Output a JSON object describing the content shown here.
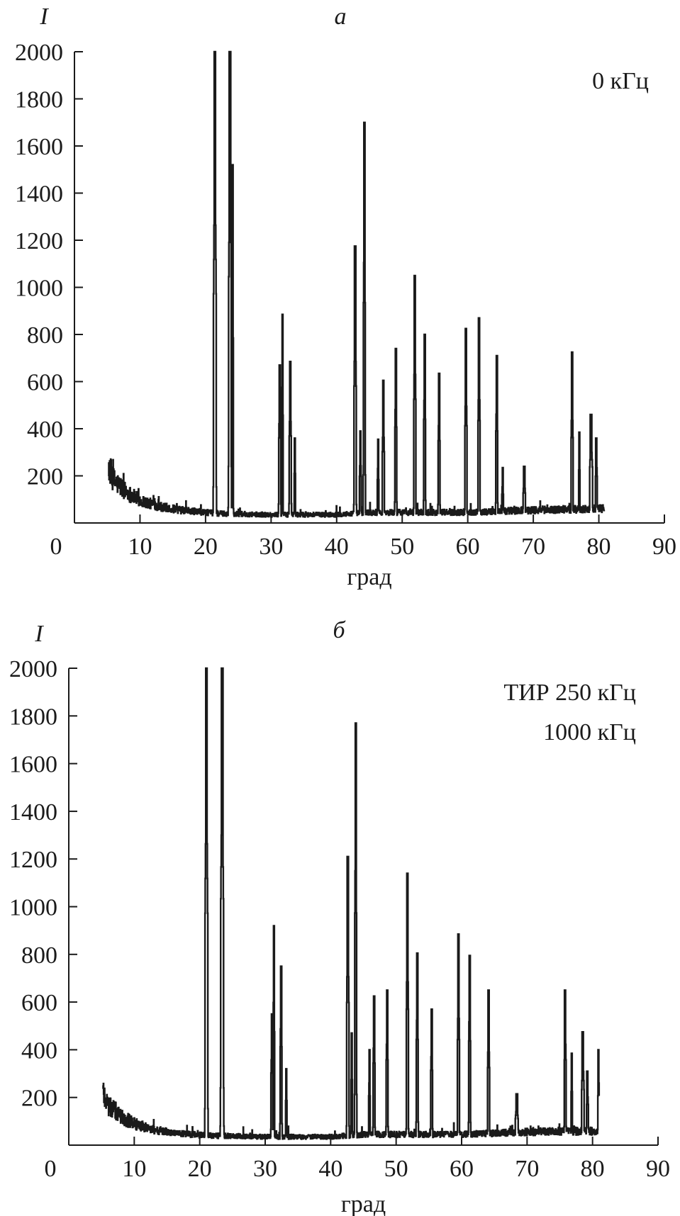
{
  "chart_data": [
    {
      "type": "line",
      "panel_label": "а",
      "ylabel": "I",
      "xlabel": "град",
      "annotation": [
        "0 кГц"
      ],
      "xlim": [
        0,
        90
      ],
      "ylim": [
        0,
        2000
      ],
      "x_ticks": [
        0,
        10,
        20,
        30,
        40,
        50,
        60,
        70,
        80,
        90
      ],
      "y_ticks": [
        200,
        400,
        600,
        800,
        1000,
        1200,
        1400,
        1600,
        1800,
        2000
      ],
      "x_start": 5.2,
      "x_end": 80.8,
      "baseline": [
        [
          5.2,
          240
        ],
        [
          6,
          180
        ],
        [
          8,
          130
        ],
        [
          10,
          95
        ],
        [
          13,
          70
        ],
        [
          16,
          55
        ],
        [
          20,
          45
        ],
        [
          22,
          40
        ],
        [
          30,
          35
        ],
        [
          40,
          35
        ],
        [
          45,
          45
        ],
        [
          60,
          45
        ],
        [
          70,
          55
        ],
        [
          80,
          60
        ]
      ],
      "peaks": [
        {
          "x": 21.4,
          "y": 2000,
          "w": 0.55
        },
        {
          "x": 23.7,
          "y": 2000,
          "w": 0.55
        },
        {
          "x": 24.1,
          "y": 1520,
          "w": 0.3
        },
        {
          "x": 31.3,
          "y": 670,
          "w": 0.45
        },
        {
          "x": 31.7,
          "y": 885,
          "w": 0.3
        },
        {
          "x": 32.9,
          "y": 685,
          "w": 0.45
        },
        {
          "x": 33.6,
          "y": 360,
          "w": 0.3
        },
        {
          "x": 42.8,
          "y": 1175,
          "w": 0.45
        },
        {
          "x": 43.6,
          "y": 390,
          "w": 0.35
        },
        {
          "x": 44.2,
          "y": 1700,
          "w": 0.4
        },
        {
          "x": 46.3,
          "y": 355,
          "w": 0.3
        },
        {
          "x": 47.1,
          "y": 605,
          "w": 0.4
        },
        {
          "x": 49.0,
          "y": 740,
          "w": 0.4
        },
        {
          "x": 51.9,
          "y": 1050,
          "w": 0.4
        },
        {
          "x": 53.4,
          "y": 800,
          "w": 0.4
        },
        {
          "x": 55.6,
          "y": 635,
          "w": 0.4
        },
        {
          "x": 59.7,
          "y": 825,
          "w": 0.4
        },
        {
          "x": 61.7,
          "y": 870,
          "w": 0.4
        },
        {
          "x": 64.4,
          "y": 710,
          "w": 0.4
        },
        {
          "x": 65.3,
          "y": 235,
          "w": 0.3
        },
        {
          "x": 68.6,
          "y": 240,
          "w": 0.5
        },
        {
          "x": 75.9,
          "y": 725,
          "w": 0.4
        },
        {
          "x": 77.0,
          "y": 385,
          "w": 0.3
        },
        {
          "x": 78.8,
          "y": 460,
          "w": 0.6
        },
        {
          "x": 79.6,
          "y": 360,
          "w": 0.4
        }
      ]
    },
    {
      "type": "line",
      "panel_label": "б",
      "ylabel": "I",
      "xlabel": "град",
      "annotation": [
        "ТИР 250 кГц",
        "1000 кГц"
      ],
      "xlim": [
        0,
        90
      ],
      "ylim": [
        0,
        2000
      ],
      "x_ticks": [
        0,
        10,
        20,
        30,
        40,
        50,
        60,
        70,
        80,
        90
      ],
      "y_ticks": [
        200,
        400,
        600,
        800,
        1000,
        1200,
        1400,
        1600,
        1800,
        2000
      ],
      "x_start": 5.2,
      "x_end": 81.0,
      "baseline": [
        [
          5.2,
          230
        ],
        [
          6,
          170
        ],
        [
          8,
          120
        ],
        [
          10,
          90
        ],
        [
          13,
          65
        ],
        [
          16,
          50
        ],
        [
          20,
          42
        ],
        [
          22,
          40
        ],
        [
          30,
          35
        ],
        [
          40,
          35
        ],
        [
          45,
          45
        ],
        [
          60,
          45
        ],
        [
          70,
          55
        ],
        [
          81,
          60
        ]
      ],
      "peaks": [
        {
          "x": 21.0,
          "y": 2000,
          "w": 0.55
        },
        {
          "x": 23.4,
          "y": 2000,
          "w": 0.6
        },
        {
          "x": 31.0,
          "y": 550,
          "w": 0.4
        },
        {
          "x": 31.3,
          "y": 920,
          "w": 0.3
        },
        {
          "x": 32.4,
          "y": 750,
          "w": 0.4
        },
        {
          "x": 33.2,
          "y": 320,
          "w": 0.3
        },
        {
          "x": 42.6,
          "y": 1210,
          "w": 0.45
        },
        {
          "x": 43.2,
          "y": 470,
          "w": 0.3
        },
        {
          "x": 43.8,
          "y": 1770,
          "w": 0.4
        },
        {
          "x": 45.9,
          "y": 400,
          "w": 0.3
        },
        {
          "x": 46.6,
          "y": 625,
          "w": 0.4
        },
        {
          "x": 48.6,
          "y": 650,
          "w": 0.4
        },
        {
          "x": 51.7,
          "y": 1140,
          "w": 0.4
        },
        {
          "x": 53.2,
          "y": 805,
          "w": 0.4
        },
        {
          "x": 55.4,
          "y": 570,
          "w": 0.4
        },
        {
          "x": 59.5,
          "y": 885,
          "w": 0.4
        },
        {
          "x": 61.2,
          "y": 795,
          "w": 0.4
        },
        {
          "x": 64.1,
          "y": 650,
          "w": 0.4
        },
        {
          "x": 68.4,
          "y": 215,
          "w": 0.6
        },
        {
          "x": 75.8,
          "y": 650,
          "w": 0.4
        },
        {
          "x": 76.8,
          "y": 385,
          "w": 0.3
        },
        {
          "x": 78.5,
          "y": 475,
          "w": 0.5
        },
        {
          "x": 79.2,
          "y": 310,
          "w": 0.4
        },
        {
          "x": 80.9,
          "y": 400,
          "w": 0.3
        }
      ]
    }
  ]
}
